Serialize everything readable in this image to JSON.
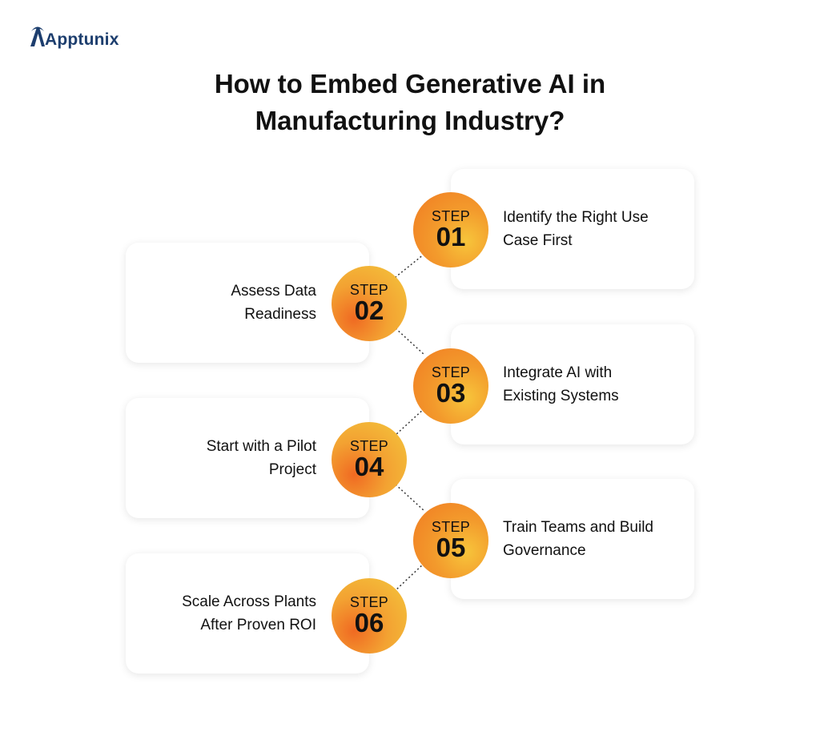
{
  "brand": {
    "name": "Apptunix"
  },
  "title": {
    "line1": "How to Embed Generative AI in",
    "line2": "Manufacturing Industry?"
  },
  "steps": [
    {
      "word": "STEP",
      "number": "01",
      "text": "Identify the Right Use Case First",
      "side": "right"
    },
    {
      "word": "STEP",
      "number": "02",
      "text": "Assess Data Readiness",
      "side": "left"
    },
    {
      "word": "STEP",
      "number": "03",
      "text": "Integrate AI with Existing Systems",
      "side": "right"
    },
    {
      "word": "STEP",
      "number": "04",
      "text": "Start with a Pilot Project",
      "side": "left"
    },
    {
      "word": "STEP",
      "number": "05",
      "text": "Train Teams and Build Governance",
      "side": "right"
    },
    {
      "word": "STEP",
      "number": "06",
      "text": "Scale Across Plants After Proven ROI",
      "side": "left"
    }
  ],
  "colors": {
    "orange": "#f07a22",
    "yellow": "#f3c83d",
    "brand": "#1d3e6e"
  }
}
